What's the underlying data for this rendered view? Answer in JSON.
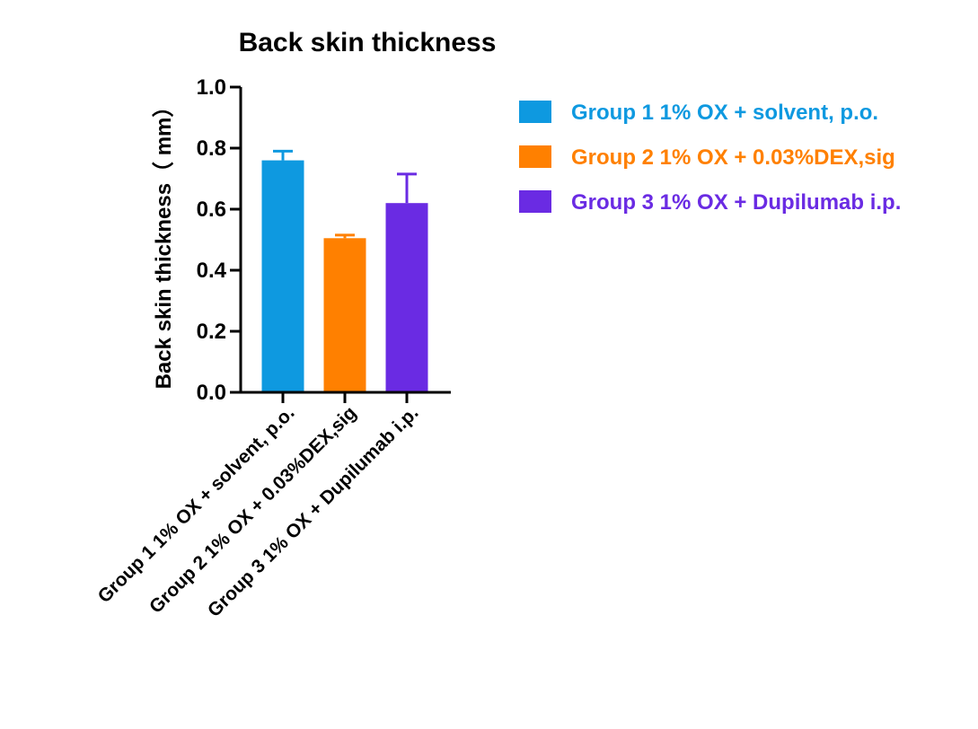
{
  "chart_data": {
    "type": "bar",
    "title": "Back skin thickness",
    "xlabel": "",
    "ylabel": "Back skin thickness（ mm）",
    "ylim": [
      0,
      1.0
    ],
    "yticks": [
      "0.0",
      "0.2",
      "0.4",
      "0.6",
      "0.8",
      "1.0"
    ],
    "grid": false,
    "legend_position": "right",
    "categories": [
      "Group 1 1% OX + solvent, p.o.",
      "Group 2 1% OX + 0.03%DEX,sig",
      "Group 3 1% OX + Dupilumab i.p."
    ],
    "values": [
      0.76,
      0.505,
      0.62
    ],
    "errors": [
      0.03,
      0.01,
      0.095
    ],
    "colors": [
      "#0E99E0",
      "#FF8000",
      "#6A2BE3"
    ],
    "legend": [
      "Group 1 1% OX + solvent, p.o.",
      "Group 2 1% OX + 0.03%DEX,sig",
      "Group 3 1% OX + Dupilumab i.p."
    ]
  }
}
